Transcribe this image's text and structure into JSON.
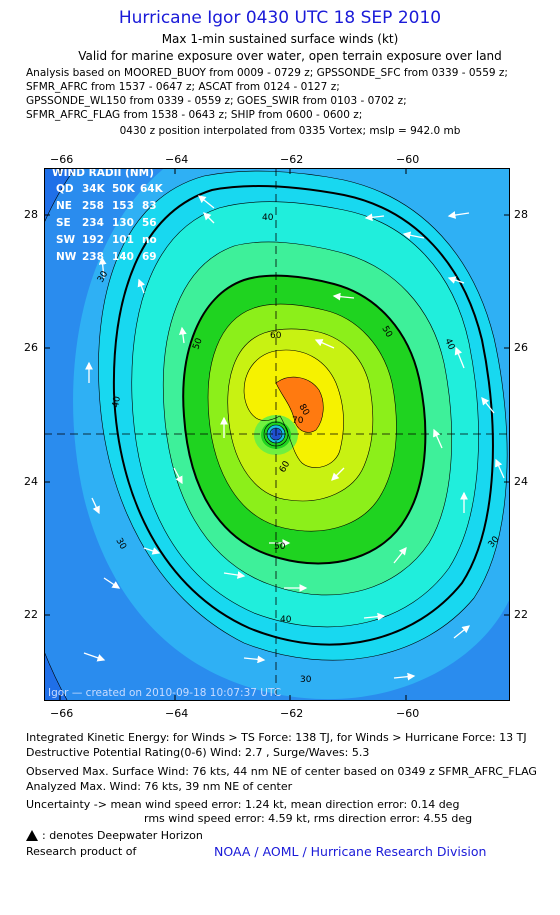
{
  "header": {
    "title": "Hurricane Igor 0430 UTC 18 SEP 2010",
    "subtitle": "Max 1-min sustained surface winds (kt)",
    "valid_for": "Valid for marine exposure over water, open terrain exposure over land",
    "analysis_lines": [
      "Analysis based on MOORED_BUOY from 0009 - 0729 z; GPSSONDE_SFC from 0339 - 0559 z;",
      "SFMR_AFRC from 1537 - 0647 z; ASCAT from 0124 - 0127 z;",
      "GPSSONDE_WL150 from 0339 - 0559 z; GOES_SWIR from 0103 - 0702 z;",
      "SFMR_AFRC_FLAG from 1538 - 0643 z; SHIP from 0600 - 0600 z;"
    ],
    "position_note": "0430 z position interpolated from 0335 Vortex; mslp = 942.0 mb"
  },
  "map": {
    "lon_ticks": [
      "−66",
      "−64",
      "−62",
      "−60"
    ],
    "lat_ticks": [
      "28",
      "26",
      "24",
      "22"
    ],
    "contour_labels": [
      "30",
      "40",
      "50",
      "60",
      "70",
      "80"
    ],
    "wind_radii": {
      "title": "WIND RADII (NM)",
      "header": [
        "QD",
        "34K",
        "50K",
        "64K"
      ],
      "rows": [
        [
          "NE",
          "258",
          "153",
          "83"
        ],
        [
          "SE",
          "234",
          "130",
          "56"
        ],
        [
          "SW",
          "192",
          "101",
          "no"
        ],
        [
          "NW",
          "238",
          "140",
          "69"
        ]
      ]
    },
    "credit_text": "Igor — created on 2010-09-18 10:07:37 UTC",
    "colors": {
      "blue": "#1f6fe8",
      "light_blue": "#2fa6f2",
      "cyan": "#18e4f2",
      "teal": "#2cf0c0",
      "green": "#3ee76a",
      "bright_green": "#20d320",
      "lime": "#a8f018",
      "yellow": "#f8f400",
      "orange": "#ff7a10"
    }
  },
  "stats": {
    "ike": "Integrated Kinetic Energy:  for Winds > TS Force: 138 TJ,  for Winds > Hurricane Force: 13 TJ",
    "dpr": "Destructive Potential Rating(0-6)   Wind: 2.7 , Surge/Waves: 5.3",
    "obs_max": "Observed Max. Surface Wind: 76 kts, 44 nm NE of center based on 0349 z SFMR_AFRC_FLAG",
    "analyzed_max": "Analyzed Max. Wind: 76 kts, 39 nm NE of center",
    "uncert1": "Uncertainty -> mean wind speed error: 1.24 kt,   mean direction error: 0.14 deg",
    "uncert2": "rms wind speed error: 4.59 kt,   rms direction error: 4.55 deg",
    "legend_note": ": denotes Deepwater Horizon",
    "research": "Research product of",
    "org": "NOAA / AOML / Hurricane Research Division"
  }
}
